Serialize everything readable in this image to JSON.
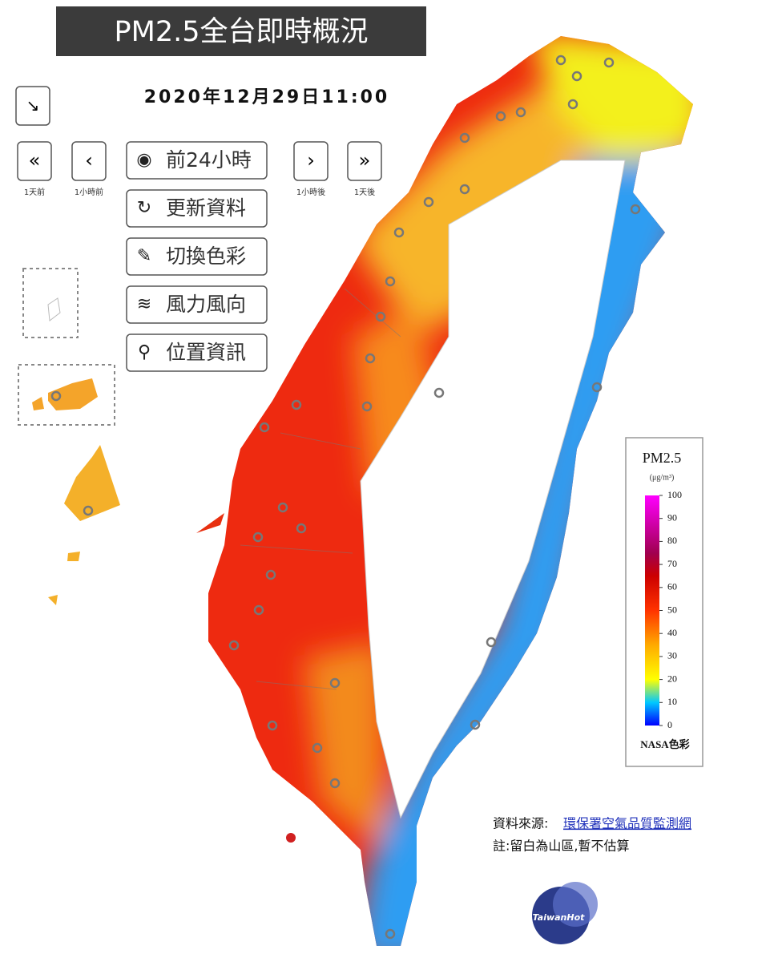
{
  "header": {
    "title": "PM2.5全台即時概況",
    "timestamp": "2020年12月29日11:00"
  },
  "nav": {
    "prev_day": "1天前",
    "prev_hour": "1小時前",
    "next_hour": "1小時後",
    "next_day": "1天後"
  },
  "buttons": [
    "前24小時",
    "更新資料",
    "切換色彩",
    "風力風向",
    "位置資訊"
  ],
  "legend": {
    "title": "PM2.5",
    "unit": "(μg/m³)",
    "ticks": [
      100,
      90,
      80,
      70,
      60,
      50,
      40,
      30,
      20,
      10,
      0
    ],
    "caption": "NASA色彩"
  },
  "footer": {
    "source_label": "資料來源:",
    "source_link": "環保署空氣品質監測網",
    "note": "註:留白為山區,暫不估算"
  },
  "watermark": "TaiwanHot"
}
